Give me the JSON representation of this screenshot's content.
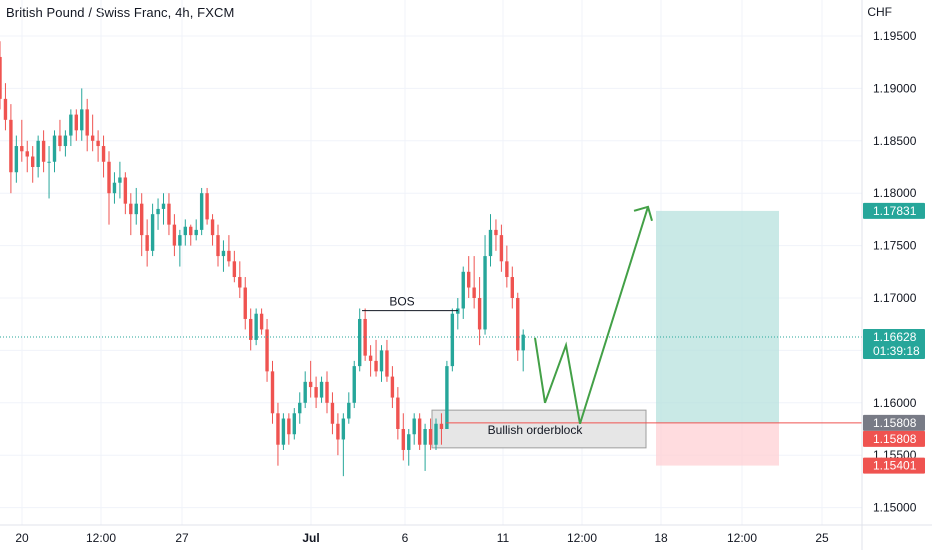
{
  "header": {
    "symbol_title": "British Pound / Swiss Franc, 4h, FXCM",
    "currency": "CHF"
  },
  "colors": {
    "up": "#26a69a",
    "down": "#ef5350",
    "target_zone": "#b2dfdb",
    "stop_zone": "#ffcdd2",
    "projection": "#43a047",
    "entry_line": "#ef5350",
    "current_price": "#26a69a",
    "grid": "#f0f3fa"
  },
  "chart_data": {
    "type": "candlestick",
    "timeframe": "4h",
    "y_axis": {
      "ylim": [
        1.149,
        1.196
      ],
      "ticks": [
        "1.19500",
        "1.19000",
        "1.18500",
        "1.18000",
        "1.17500",
        "1.17000",
        "1.16500",
        "1.16000",
        "1.15500",
        "1.15000"
      ]
    },
    "x_axis": {
      "ticks": [
        "20",
        "12:00",
        "27",
        "Jul",
        "6",
        "11",
        "12:00",
        "18",
        "12:00",
        "25"
      ]
    },
    "candles_ohlc": [
      [
        1.193,
        1.1945,
        1.188,
        1.189
      ],
      [
        1.189,
        1.1905,
        1.186,
        1.187
      ],
      [
        1.187,
        1.1885,
        1.18,
        1.182
      ],
      [
        1.182,
        1.1855,
        1.181,
        1.1845
      ],
      [
        1.1845,
        1.187,
        1.183,
        1.184
      ],
      [
        1.184,
        1.185,
        1.182,
        1.1835
      ],
      [
        1.1835,
        1.1845,
        1.181,
        1.1825
      ],
      [
        1.1825,
        1.1855,
        1.1815,
        1.185
      ],
      [
        1.185,
        1.186,
        1.182,
        1.183
      ],
      [
        1.183,
        1.1845,
        1.1795,
        1.183
      ],
      [
        1.183,
        1.186,
        1.182,
        1.1855
      ],
      [
        1.1855,
        1.187,
        1.184,
        1.1845
      ],
      [
        1.1845,
        1.186,
        1.1835,
        1.1855
      ],
      [
        1.1855,
        1.188,
        1.1845,
        1.1875
      ],
      [
        1.1875,
        1.188,
        1.185,
        1.186
      ],
      [
        1.186,
        1.19,
        1.185,
        1.188
      ],
      [
        1.188,
        1.189,
        1.184,
        1.1855
      ],
      [
        1.1855,
        1.1875,
        1.184,
        1.185
      ],
      [
        1.185,
        1.186,
        1.183,
        1.1845
      ],
      [
        1.1845,
        1.1855,
        1.1815,
        1.183
      ],
      [
        1.183,
        1.184,
        1.177,
        1.18
      ],
      [
        1.18,
        1.182,
        1.179,
        1.181
      ],
      [
        1.181,
        1.183,
        1.1795,
        1.1815
      ],
      [
        1.1815,
        1.182,
        1.178,
        1.179
      ],
      [
        1.179,
        1.18,
        1.176,
        1.178
      ],
      [
        1.178,
        1.1805,
        1.177,
        1.179
      ],
      [
        1.179,
        1.18,
        1.174,
        1.176
      ],
      [
        1.176,
        1.1775,
        1.173,
        1.1745
      ],
      [
        1.1745,
        1.179,
        1.174,
        1.178
      ],
      [
        1.178,
        1.1795,
        1.1765,
        1.1785
      ],
      [
        1.1785,
        1.18,
        1.177,
        1.179
      ],
      [
        1.179,
        1.18,
        1.176,
        1.177
      ],
      [
        1.177,
        1.178,
        1.174,
        1.175
      ],
      [
        1.175,
        1.1765,
        1.173,
        1.176
      ],
      [
        1.176,
        1.1775,
        1.175,
        1.1768
      ],
      [
        1.1768,
        1.177,
        1.175,
        1.176
      ],
      [
        1.176,
        1.1775,
        1.1755,
        1.1765
      ],
      [
        1.1765,
        1.1805,
        1.176,
        1.18
      ],
      [
        1.18,
        1.1805,
        1.177,
        1.1775
      ],
      [
        1.1775,
        1.178,
        1.175,
        1.176
      ],
      [
        1.176,
        1.177,
        1.173,
        1.174
      ],
      [
        1.174,
        1.1755,
        1.1725,
        1.1745
      ],
      [
        1.1745,
        1.176,
        1.173,
        1.1735
      ],
      [
        1.1735,
        1.1745,
        1.1715,
        1.172
      ],
      [
        1.172,
        1.1735,
        1.17,
        1.171
      ],
      [
        1.171,
        1.172,
        1.167,
        1.168
      ],
      [
        1.168,
        1.169,
        1.165,
        1.166
      ],
      [
        1.166,
        1.169,
        1.1655,
        1.1685
      ],
      [
        1.1685,
        1.169,
        1.1665,
        1.167
      ],
      [
        1.167,
        1.168,
        1.162,
        1.163
      ],
      [
        1.163,
        1.164,
        1.158,
        1.159
      ],
      [
        1.159,
        1.16,
        1.154,
        1.156
      ],
      [
        1.156,
        1.159,
        1.1555,
        1.1585
      ],
      [
        1.1585,
        1.159,
        1.156,
        1.157
      ],
      [
        1.157,
        1.1595,
        1.1565,
        1.159
      ],
      [
        1.159,
        1.161,
        1.158,
        1.16
      ],
      [
        1.16,
        1.163,
        1.1595,
        1.162
      ],
      [
        1.162,
        1.164,
        1.1605,
        1.1615
      ],
      [
        1.1615,
        1.1625,
        1.1595,
        1.1605
      ],
      [
        1.1605,
        1.1625,
        1.16,
        1.162
      ],
      [
        1.162,
        1.163,
        1.159,
        1.16
      ],
      [
        1.16,
        1.161,
        1.157,
        1.158
      ],
      [
        1.158,
        1.159,
        1.155,
        1.1565
      ],
      [
        1.1565,
        1.159,
        1.153,
        1.1585
      ],
      [
        1.1585,
        1.161,
        1.158,
        1.16
      ],
      [
        1.16,
        1.164,
        1.1595,
        1.1635
      ],
      [
        1.1635,
        1.169,
        1.163,
        1.168
      ],
      [
        1.168,
        1.169,
        1.164,
        1.1645
      ],
      [
        1.1645,
        1.1655,
        1.1625,
        1.164
      ],
      [
        1.164,
        1.166,
        1.1625,
        1.163
      ],
      [
        1.163,
        1.1655,
        1.162,
        1.165
      ],
      [
        1.165,
        1.166,
        1.162,
        1.1625
      ],
      [
        1.1625,
        1.1635,
        1.1595,
        1.1605
      ],
      [
        1.1605,
        1.1615,
        1.1565,
        1.1575
      ],
      [
        1.1575,
        1.159,
        1.1545,
        1.1555
      ],
      [
        1.1555,
        1.1575,
        1.154,
        1.157
      ],
      [
        1.157,
        1.159,
        1.156,
        1.1585
      ],
      [
        1.1585,
        1.159,
        1.1555,
        1.156
      ],
      [
        1.156,
        1.158,
        1.1535,
        1.1575
      ],
      [
        1.1575,
        1.1585,
        1.1555,
        1.156
      ],
      [
        1.156,
        1.1585,
        1.1555,
        1.158
      ],
      [
        1.158,
        1.159,
        1.156,
        1.1575
      ],
      [
        1.1575,
        1.164,
        1.1575,
        1.1635
      ],
      [
        1.1635,
        1.169,
        1.163,
        1.1685
      ],
      [
        1.1685,
        1.17,
        1.167,
        1.169
      ],
      [
        1.169,
        1.173,
        1.168,
        1.1725
      ],
      [
        1.1725,
        1.174,
        1.17,
        1.171
      ],
      [
        1.171,
        1.174,
        1.169,
        1.17
      ],
      [
        1.17,
        1.172,
        1.1655,
        1.167
      ],
      [
        1.167,
        1.176,
        1.1665,
        1.174
      ],
      [
        1.174,
        1.178,
        1.173,
        1.1765
      ],
      [
        1.1765,
        1.1775,
        1.1745,
        1.176
      ],
      [
        1.176,
        1.177,
        1.1725,
        1.1735
      ],
      [
        1.1735,
        1.175,
        1.171,
        1.172
      ],
      [
        1.172,
        1.173,
        1.169,
        1.17
      ],
      [
        1.17,
        1.1705,
        1.164,
        1.165
      ],
      [
        1.165,
        1.167,
        1.163,
        1.1665
      ]
    ],
    "annotations": {
      "bos_label": "BOS",
      "bos_level": 1.1688,
      "orderblock_label": "Bullish orderblock",
      "orderblock_top": 1.1593,
      "orderblock_bottom": 1.1557,
      "projection_path": [
        1.1662,
        1.16,
        1.1655,
        1.158,
        1.1787
      ]
    },
    "position": {
      "target_price": "1.17831",
      "current_price": "1.16628",
      "countdown": "01:39:18",
      "entry_price_a": "1.15808",
      "entry_price_b": "1.15808",
      "stop_price": "1.15401",
      "target_value": 1.17831,
      "entry_value": 1.15808,
      "stop_value": 1.15401,
      "current_value": 1.16628
    }
  }
}
